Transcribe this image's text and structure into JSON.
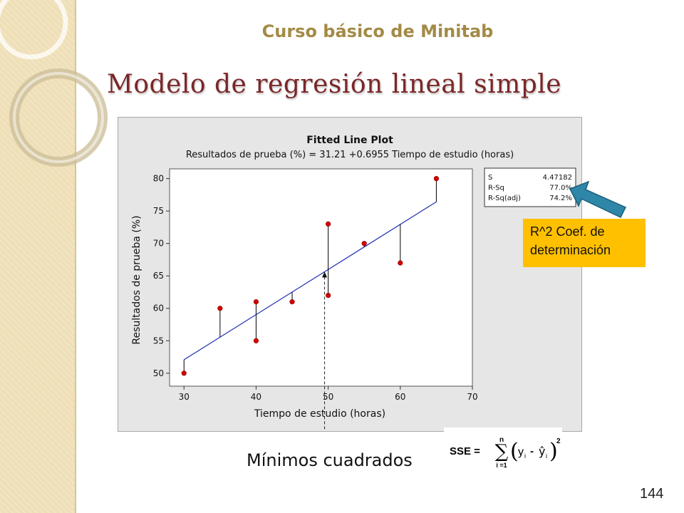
{
  "header": {
    "course_title": "Curso básico de Minitab"
  },
  "slide": {
    "title": "Modelo de regresión lineal simple",
    "page_number": "144"
  },
  "chart_data": {
    "type": "scatter",
    "title": "Fitted Line Plot",
    "subtitle": "Resultados de prueba (%) = 31.21 +0.6955 Tiempo de estudio (horas)",
    "xlabel": "Tiempo de estudio (horas)",
    "ylabel": "Resultados de prueba (%)",
    "xlim": [
      28,
      70
    ],
    "ylim": [
      48,
      81.5
    ],
    "xticks": [
      30,
      40,
      50,
      60,
      70
    ],
    "yticks": [
      50,
      55,
      60,
      65,
      70,
      75,
      80
    ],
    "fit": {
      "intercept": 31.21,
      "slope": 0.6955,
      "x_range": [
        30,
        65
      ]
    },
    "points": [
      {
        "x": 30,
        "y": 50
      },
      {
        "x": 35,
        "y": 60
      },
      {
        "x": 40,
        "y": 55
      },
      {
        "x": 40,
        "y": 61
      },
      {
        "x": 45,
        "y": 61
      },
      {
        "x": 50,
        "y": 73
      },
      {
        "x": 50,
        "y": 62
      },
      {
        "x": 55,
        "y": 70
      },
      {
        "x": 60,
        "y": 67
      },
      {
        "x": 65,
        "y": 80
      }
    ],
    "marker_x": 49.5,
    "stats": [
      {
        "label": "S",
        "value": "4.47182"
      },
      {
        "label": "R-Sq",
        "value": "77.0%"
      },
      {
        "label": "R-Sq(adj)",
        "value": "74.2%"
      }
    ],
    "colors": {
      "points": "#d40000",
      "line": "#1f2fb0",
      "residual": "#000000"
    }
  },
  "callout": {
    "text_line1": "R^2 Coef. de",
    "text_line2": "determinación",
    "color": "#ffc000",
    "arrow_color": "#2e86a8"
  },
  "bottom": {
    "label": "Mínimos cuadrados"
  },
  "formula": {
    "lhs": "SSE =",
    "upper": "n",
    "lower": "i =1",
    "sum": "∑",
    "y": "y",
    "i": "i",
    "minus": "-",
    "yhat": "ŷ",
    "exp": "2",
    "lparen": "(",
    "rparen": ")"
  }
}
